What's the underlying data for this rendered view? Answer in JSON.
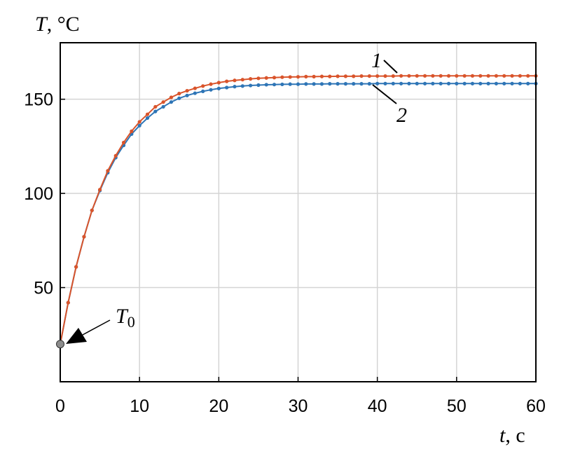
{
  "chart_data": {
    "type": "line",
    "ylabel": {
      "var": "T",
      "unit": ", °C"
    },
    "xlabel": {
      "var": "t",
      "unit": ", с"
    },
    "xlim": [
      0,
      60
    ],
    "ylim": [
      0,
      180
    ],
    "xticks": [
      0,
      10,
      20,
      30,
      40,
      50,
      60
    ],
    "yticks": [
      50,
      100,
      150
    ],
    "grid": true,
    "initial_point": {
      "label_main": "T",
      "label_sub": "0",
      "x": 0,
      "y": 20
    },
    "series": [
      {
        "name": "1",
        "color": "#d9542b",
        "marker": "dot",
        "x": [
          0,
          1,
          2,
          3,
          4,
          5,
          6,
          7,
          8,
          9,
          10,
          11,
          12,
          13,
          14,
          15,
          16,
          17,
          18,
          19,
          20,
          21,
          22,
          23,
          24,
          25,
          26,
          27,
          28,
          29,
          30,
          31,
          32,
          33,
          34,
          35,
          36,
          37,
          38,
          39,
          40,
          41,
          42,
          43,
          44,
          45,
          46,
          47,
          48,
          49,
          50,
          51,
          52,
          53,
          54,
          55,
          56,
          57,
          58,
          59,
          60
        ],
        "y": [
          20,
          42,
          61,
          77,
          91,
          102,
          112,
          120,
          127,
          133,
          138,
          142,
          146,
          148.5,
          151,
          153,
          154.5,
          155.8,
          157,
          158,
          158.8,
          159.5,
          160,
          160.4,
          160.8,
          161.1,
          161.3,
          161.5,
          161.7,
          161.8,
          161.9,
          162,
          162,
          162.1,
          162.1,
          162.2,
          162.2,
          162.2,
          162.3,
          162.3,
          162.3,
          162.3,
          162.3,
          162.4,
          162.4,
          162.4,
          162.4,
          162.4,
          162.4,
          162.4,
          162.4,
          162.4,
          162.4,
          162.4,
          162.4,
          162.4,
          162.4,
          162.4,
          162.4,
          162.4,
          162.4
        ]
      },
      {
        "name": "2",
        "color": "#2e75b6",
        "marker": "dot",
        "x": [
          0,
          1,
          2,
          3,
          4,
          5,
          6,
          7,
          8,
          9,
          10,
          11,
          12,
          13,
          14,
          15,
          16,
          17,
          18,
          19,
          20,
          21,
          22,
          23,
          24,
          25,
          26,
          27,
          28,
          29,
          30,
          31,
          32,
          33,
          34,
          35,
          36,
          37,
          38,
          39,
          40,
          41,
          42,
          43,
          44,
          45,
          46,
          47,
          48,
          49,
          50,
          51,
          52,
          53,
          54,
          55,
          56,
          57,
          58,
          59,
          60
        ],
        "y": [
          20,
          42,
          61,
          77,
          91,
          101.5,
          111,
          119,
          125.5,
          131.5,
          136,
          140,
          143.5,
          146,
          148.5,
          150.5,
          152,
          153.2,
          154.2,
          155,
          155.7,
          156.2,
          156.7,
          157,
          157.3,
          157.5,
          157.7,
          157.8,
          157.9,
          158,
          158,
          158.1,
          158.1,
          158.1,
          158.2,
          158.2,
          158.2,
          158.2,
          158.2,
          158.2,
          158.3,
          158.3,
          158.3,
          158.3,
          158.3,
          158.3,
          158.3,
          158.3,
          158.3,
          158.3,
          158.3,
          158.3,
          158.3,
          158.3,
          158.3,
          158.3,
          158.3,
          158.3,
          158.3,
          158.3,
          158.3
        ]
      }
    ],
    "colors": {
      "grid": "#d4d4d4",
      "axes": "#000000",
      "initial_marker": "#8c8c8c"
    }
  }
}
